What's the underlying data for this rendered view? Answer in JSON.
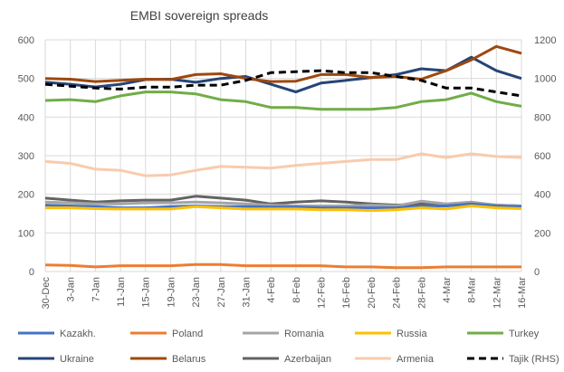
{
  "chart_data": {
    "type": "line",
    "title": "EMBI sovereign spreads",
    "xlabel": "",
    "ylabel": "",
    "ylim": [
      0,
      600
    ],
    "y2lim": [
      0,
      1200
    ],
    "yticks": [
      "0",
      "100",
      "200",
      "300",
      "400",
      "500",
      "600"
    ],
    "y2ticks": [
      "0",
      "200",
      "400",
      "600",
      "800",
      "1000",
      "1200"
    ],
    "grid": true,
    "legend": "bottom",
    "x": [
      "30-Dec",
      "3-Jan",
      "7-Jan",
      "11-Jan",
      "15-Jan",
      "19-Jan",
      "23-Jan",
      "27-Jan",
      "31-Jan",
      "4-Feb",
      "8-Feb",
      "12-Feb",
      "16-Feb",
      "20-Feb",
      "24-Feb",
      "28-Feb",
      "4-Mar",
      "8-Mar",
      "12-Mar",
      "16-Mar"
    ],
    "series": [
      {
        "name": "Kazakh.",
        "color": "#4472C4",
        "axis": "left",
        "values": [
          172,
          170,
          168,
          165,
          165,
          168,
          170,
          168,
          168,
          167,
          167,
          165,
          165,
          165,
          165,
          170,
          170,
          175,
          170,
          168
        ]
      },
      {
        "name": "Poland",
        "color": "#ED7D31",
        "axis": "left",
        "values": [
          17,
          16,
          12,
          15,
          15,
          15,
          18,
          18,
          15,
          15,
          15,
          15,
          12,
          12,
          10,
          10,
          12,
          12,
          12,
          12
        ]
      },
      {
        "name": "Romania",
        "color": "#A5A5A5",
        "axis": "left",
        "values": [
          180,
          178,
          175,
          175,
          178,
          178,
          180,
          178,
          175,
          172,
          170,
          170,
          170,
          172,
          170,
          182,
          175,
          180,
          172,
          170
        ]
      },
      {
        "name": "Russia",
        "color": "#FFC000",
        "axis": "left",
        "values": [
          165,
          165,
          163,
          162,
          162,
          162,
          168,
          165,
          162,
          162,
          162,
          160,
          160,
          158,
          160,
          165,
          162,
          170,
          165,
          163
        ]
      },
      {
        "name": "Turkey",
        "color": "#70AD47",
        "axis": "left",
        "values": [
          443,
          445,
          440,
          455,
          465,
          465,
          460,
          445,
          440,
          425,
          425,
          420,
          420,
          420,
          425,
          440,
          445,
          462,
          440,
          428
        ]
      },
      {
        "name": "Ukraine",
        "color": "#264478",
        "axis": "left",
        "values": [
          490,
          485,
          478,
          485,
          497,
          498,
          490,
          500,
          505,
          485,
          465,
          488,
          495,
          502,
          510,
          525,
          520,
          555,
          520,
          500
        ]
      },
      {
        "name": "Belarus",
        "color": "#9E480E",
        "axis": "left",
        "values": [
          500,
          498,
          492,
          495,
          498,
          497,
          510,
          512,
          500,
          492,
          493,
          510,
          510,
          502,
          505,
          498,
          520,
          548,
          583,
          565
        ]
      },
      {
        "name": "Azerbaijan",
        "color": "#636363",
        "axis": "left",
        "values": [
          190,
          185,
          180,
          183,
          185,
          185,
          195,
          190,
          185,
          175,
          180,
          183,
          180,
          175,
          172,
          175,
          170,
          178,
          172,
          170
        ]
      },
      {
        "name": "Armenia",
        "color": "#F8CBAD",
        "axis": "left",
        "values": [
          285,
          280,
          265,
          262,
          248,
          250,
          262,
          272,
          270,
          268,
          275,
          280,
          285,
          290,
          290,
          305,
          295,
          305,
          298,
          295
        ]
      },
      {
        "name": "Tajik (RHS)",
        "color": "#000000",
        "axis": "right",
        "dashed": true,
        "values": [
          970,
          960,
          950,
          945,
          955,
          955,
          965,
          965,
          990,
          1030,
          1035,
          1040,
          1030,
          1030,
          1010,
          990,
          950,
          950,
          930,
          910
        ]
      }
    ]
  }
}
